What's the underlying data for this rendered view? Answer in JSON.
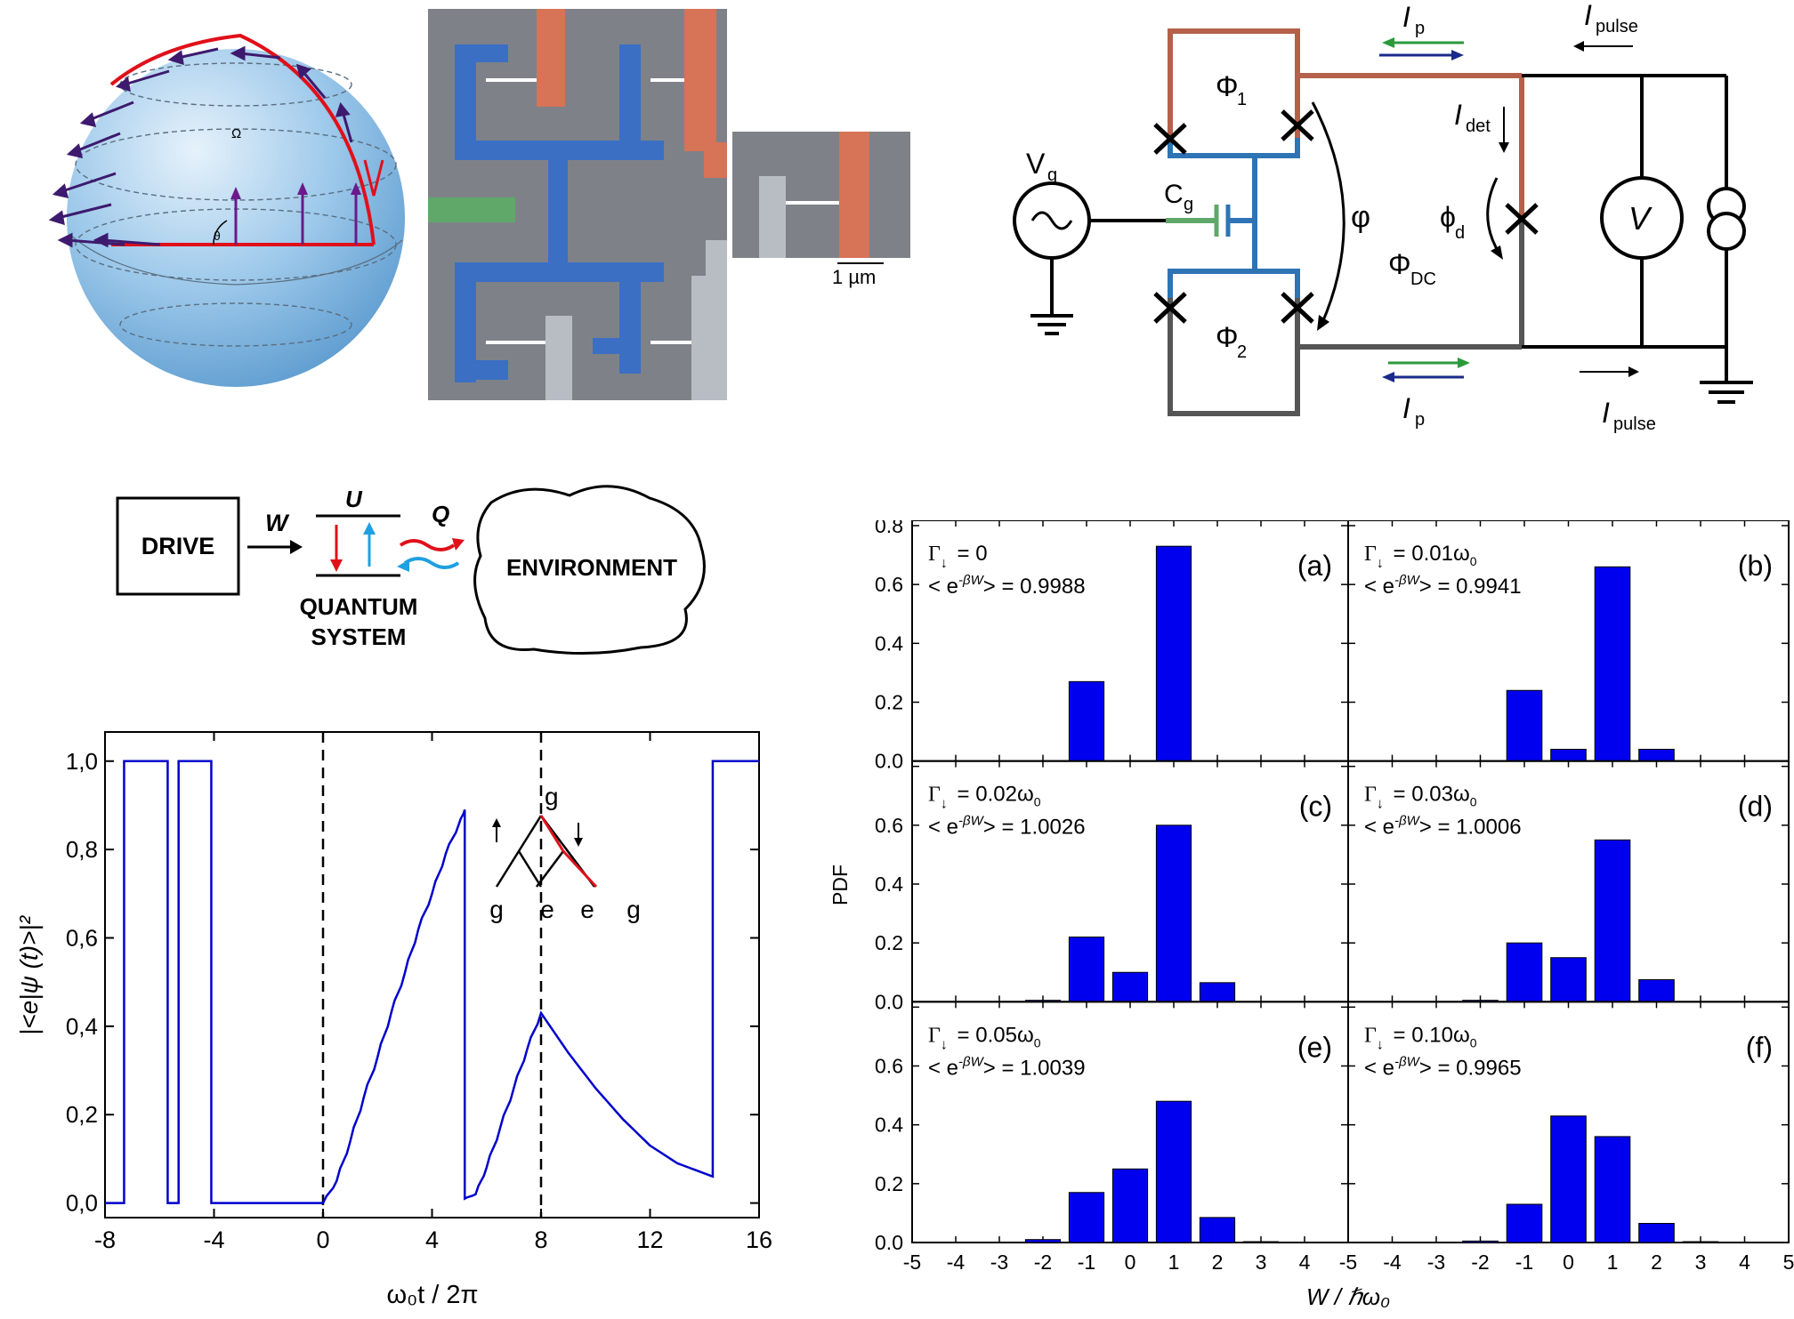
{
  "sphere": {
    "omega": "Ω",
    "theta": "θ"
  },
  "micrograph": {
    "scale_label": "1 µm"
  },
  "circuit": {
    "Vg": "V",
    "Vg_sub": "g",
    "Cg": "C",
    "Cg_sub": "g",
    "Phi1": "Φ",
    "Phi1_sub": "1",
    "Phi2": "Φ",
    "Phi2_sub": "2",
    "PhiDC": "Φ",
    "PhiDC_sub": "DC",
    "phi": "φ",
    "phid": "ϕ",
    "phid_sub": "d",
    "Ip": "I",
    "Ip_sub": "p",
    "Idet": "I",
    "Idet_sub": "det",
    "Ipulse": "I",
    "Ipulse_sub": "pulse",
    "V": "V"
  },
  "schematic": {
    "drive": "DRIVE",
    "W": "W",
    "U": "U",
    "Q": "Q",
    "quantum_system_1": "QUANTUM",
    "quantum_system_2": "SYSTEM",
    "environment": "ENVIRONMENT"
  },
  "line_chart": {
    "chart_data": {
      "type": "line",
      "ylabel": "|<e|ψ (t)>|²",
      "xlabel": "ω₀t / 2π",
      "xlim": [
        -8,
        16
      ],
      "ylim": [
        0,
        1.0
      ],
      "xticks": [
        "-8",
        "-4",
        "0",
        "4",
        "8",
        "12",
        "16"
      ],
      "yticks": [
        "0,0",
        "0,2",
        "0,4",
        "0,6",
        "0,8",
        "1,0"
      ],
      "dashed_lines_x": [
        0,
        8
      ],
      "inset": {
        "top": "g",
        "bottom": [
          "g",
          "e",
          "e",
          "g"
        ]
      },
      "series": [
        {
          "color": "#0000cc",
          "x": [
            -8,
            -7.3,
            -7.3,
            -5.7,
            -5.7,
            -5.3,
            -5.3,
            -4.1,
            -4.1,
            0,
            0.5,
            1,
            1.5,
            2,
            2.5,
            3,
            3.5,
            4,
            4.5,
            5,
            5.2,
            5.2,
            5.6,
            6,
            6.5,
            7,
            7.5,
            8,
            9,
            10,
            11,
            12,
            13,
            14.3,
            14.3,
            16
          ],
          "y": [
            0,
            0,
            1,
            1,
            0,
            0,
            1,
            1,
            0,
            0,
            0.05,
            0.14,
            0.24,
            0.33,
            0.43,
            0.52,
            0.62,
            0.7,
            0.79,
            0.86,
            0.89,
            0.01,
            0.02,
            0.08,
            0.17,
            0.26,
            0.35,
            0.43,
            0.34,
            0.26,
            0.19,
            0.13,
            0.09,
            0.06,
            1,
            1
          ]
        }
      ]
    }
  },
  "histograms": {
    "chart_data": {
      "type": "bar",
      "ylabel": "PDF",
      "xlabel": "W / ℏω₀",
      "ylim": [
        0,
        0.8
      ],
      "yticks": [
        "0.0",
        "0.2",
        "0.4",
        "0.6",
        "0.8"
      ],
      "xticks_left": [
        "-5",
        "-4",
        "-3",
        "-2",
        "-1",
        "0",
        "1",
        "2",
        "3",
        "4"
      ],
      "xticks_right": [
        "-5",
        "-4",
        "-3",
        "-2",
        "-1",
        "0",
        "1",
        "2",
        "3",
        "4",
        "5"
      ],
      "categories": [
        -2,
        -1,
        0,
        1,
        2,
        3
      ],
      "panels": [
        {
          "label": "(a)",
          "gamma": "= 0",
          "avg": "= 0.9988",
          "values": [
            0,
            0.27,
            0,
            0.73,
            0,
            0
          ]
        },
        {
          "label": "(b)",
          "gamma": "= 0.01ω",
          "avg": "= 0.9941",
          "values": [
            0,
            0.24,
            0.04,
            0.66,
            0.04,
            0
          ]
        },
        {
          "label": "(c)",
          "gamma": "= 0.02ω",
          "avg": "= 1.0026",
          "values": [
            0.005,
            0.22,
            0.1,
            0.6,
            0.065,
            0
          ]
        },
        {
          "label": "(d)",
          "gamma": "= 0.03ω",
          "avg": "= 1.0006",
          "values": [
            0.005,
            0.2,
            0.15,
            0.55,
            0.075,
            0
          ]
        },
        {
          "label": "(e)",
          "gamma": "= 0.05ω",
          "avg": "= 1.0039",
          "values": [
            0.01,
            0.17,
            0.25,
            0.48,
            0.085,
            0.003
          ]
        },
        {
          "label": "(f)",
          "gamma": "= 0.10ω",
          "avg": "= 0.9965",
          "values": [
            0.005,
            0.13,
            0.43,
            0.36,
            0.065,
            0.003
          ]
        }
      ],
      "gamma_symbol": "Γ",
      "avg_prefix": "< e",
      "avg_exp": "-βW",
      "avg_suffix": ">"
    }
  }
}
